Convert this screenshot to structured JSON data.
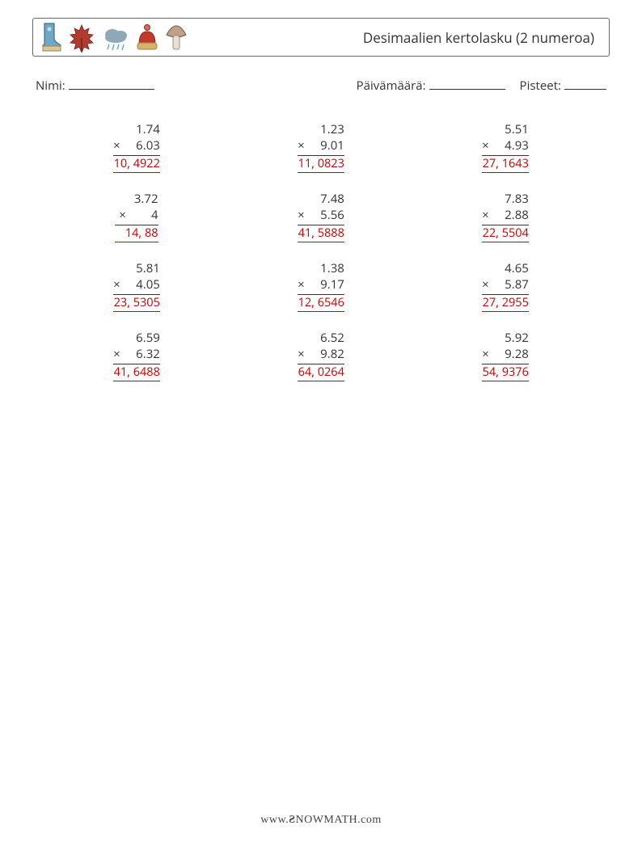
{
  "header": {
    "title": "Desimaalien kertolasku (2 numeroa)"
  },
  "info": {
    "name_label": "Nimi:",
    "date_label": "Päivämäärä:",
    "score_label": "Pisteet:",
    "name_line_width": 106,
    "date_line_width": 94,
    "score_line_width": 52
  },
  "styling": {
    "text_color": "#333333",
    "answer_color": "#cc0000",
    "border_color": "#666666",
    "background": "#ffffff",
    "title_fontsize": 17,
    "body_fontsize": 15,
    "answer_fontsize": 14.5,
    "num_width_chars": 8
  },
  "icons": {
    "boot": {
      "fill": "#6fa8c7",
      "trim": "#d9c59a"
    },
    "leaf": {
      "fill": "#b23a2e"
    },
    "cloud": {
      "fill": "#8fa8b8",
      "drops": "#6fa8c7"
    },
    "hat": {
      "fill": "#c0392b",
      "band": "#d9b26a"
    },
    "mushroom": {
      "cap": "#bfa088",
      "stem": "#e8e0d0"
    }
  },
  "problems": [
    {
      "a": "1.74",
      "b": "6.03",
      "ans": "10, 4922"
    },
    {
      "a": "1.23",
      "b": "9.01",
      "ans": "11, 0823"
    },
    {
      "a": "5.51",
      "b": "4.93",
      "ans": "27, 1643"
    },
    {
      "a": "3.72",
      "b": "4",
      "ans": "14, 88"
    },
    {
      "a": "7.48",
      "b": "5.56",
      "ans": "41, 5888"
    },
    {
      "a": "7.83",
      "b": "2.88",
      "ans": "22, 5504"
    },
    {
      "a": "5.81",
      "b": "4.05",
      "ans": "23, 5305"
    },
    {
      "a": "1.38",
      "b": "9.17",
      "ans": "12, 6546"
    },
    {
      "a": "4.65",
      "b": "5.87",
      "ans": "27, 2955"
    },
    {
      "a": "6.59",
      "b": "6.32",
      "ans": "41, 6488"
    },
    {
      "a": "6.52",
      "b": "9.82",
      "ans": "64, 0264"
    },
    {
      "a": "5.92",
      "b": "9.28",
      "ans": "54, 9376"
    }
  ],
  "footer": {
    "text": "www.snowmath.com"
  }
}
